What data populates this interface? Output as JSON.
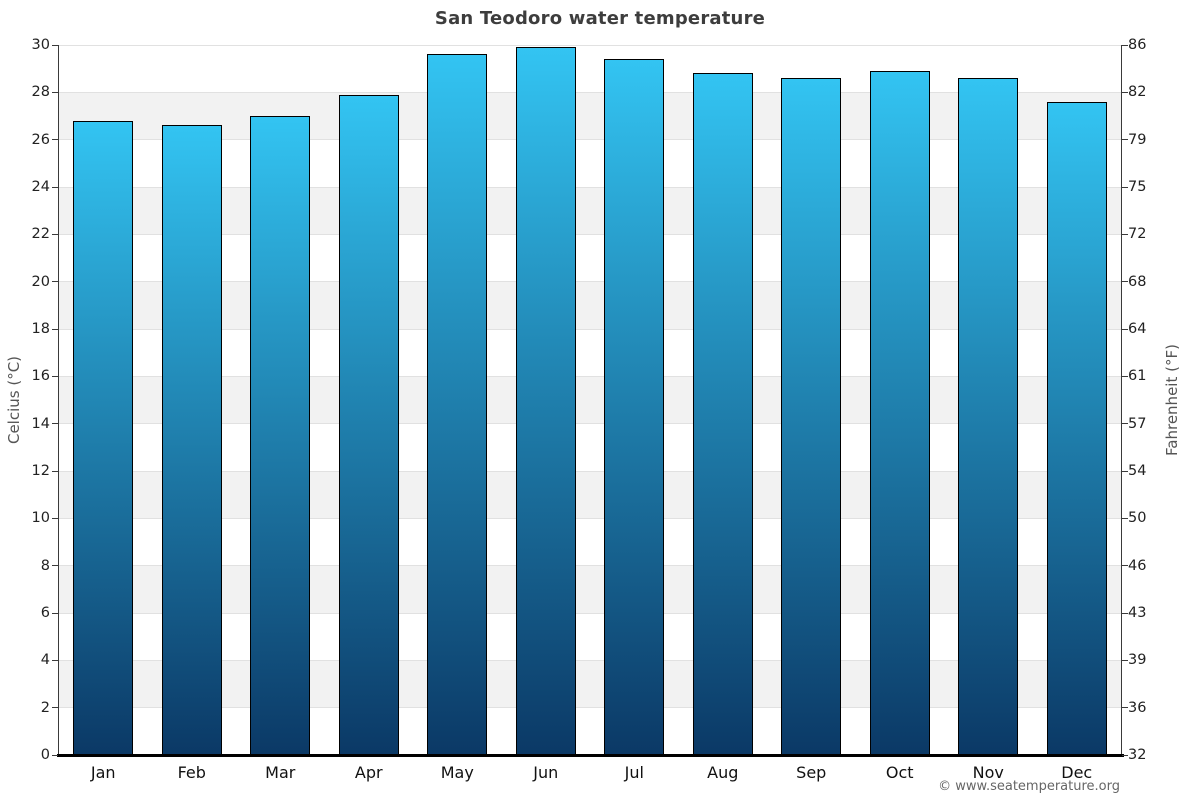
{
  "page": {
    "title": "San Teodoro water temperature",
    "credit": "© www.seatemperature.org"
  },
  "chart_data": {
    "type": "bar",
    "title": "San Teodoro water temperature",
    "categories": [
      "Jan",
      "Feb",
      "Mar",
      "Apr",
      "May",
      "Jun",
      "Jul",
      "Aug",
      "Sep",
      "Oct",
      "Nov",
      "Dec"
    ],
    "values": [
      26.8,
      26.6,
      27.0,
      27.9,
      29.6,
      29.9,
      29.4,
      28.8,
      28.6,
      28.9,
      28.6,
      27.6
    ],
    "unit": "°C",
    "ylabel_left": "Celcius (°C)",
    "ylabel_right": "Fahrenheit (°F)",
    "ylim": [
      0,
      30
    ],
    "yticks_celsius": [
      30,
      28,
      26,
      24,
      22,
      20,
      18,
      16,
      14,
      12,
      10,
      8,
      6,
      4,
      2,
      0
    ],
    "yticks_fahrenheit": [
      86,
      82,
      79,
      75,
      72,
      68,
      64,
      61,
      57,
      54,
      50,
      46,
      43,
      39,
      36,
      32
    ],
    "grid": "alternating-bands",
    "legend": "none",
    "colors": {
      "bar_top": "#33c4f2",
      "bar_bottom": "#0b3966",
      "bar_border": "#000000",
      "band_gray": "#f2f2f2",
      "gridline": "#e1e1e1",
      "axis": "#3a3a3a",
      "x_axis": "#000000",
      "title": "#3d3d3d",
      "axis_label": "#555555",
      "tick_label": "#222222",
      "credit": "#666666"
    }
  }
}
